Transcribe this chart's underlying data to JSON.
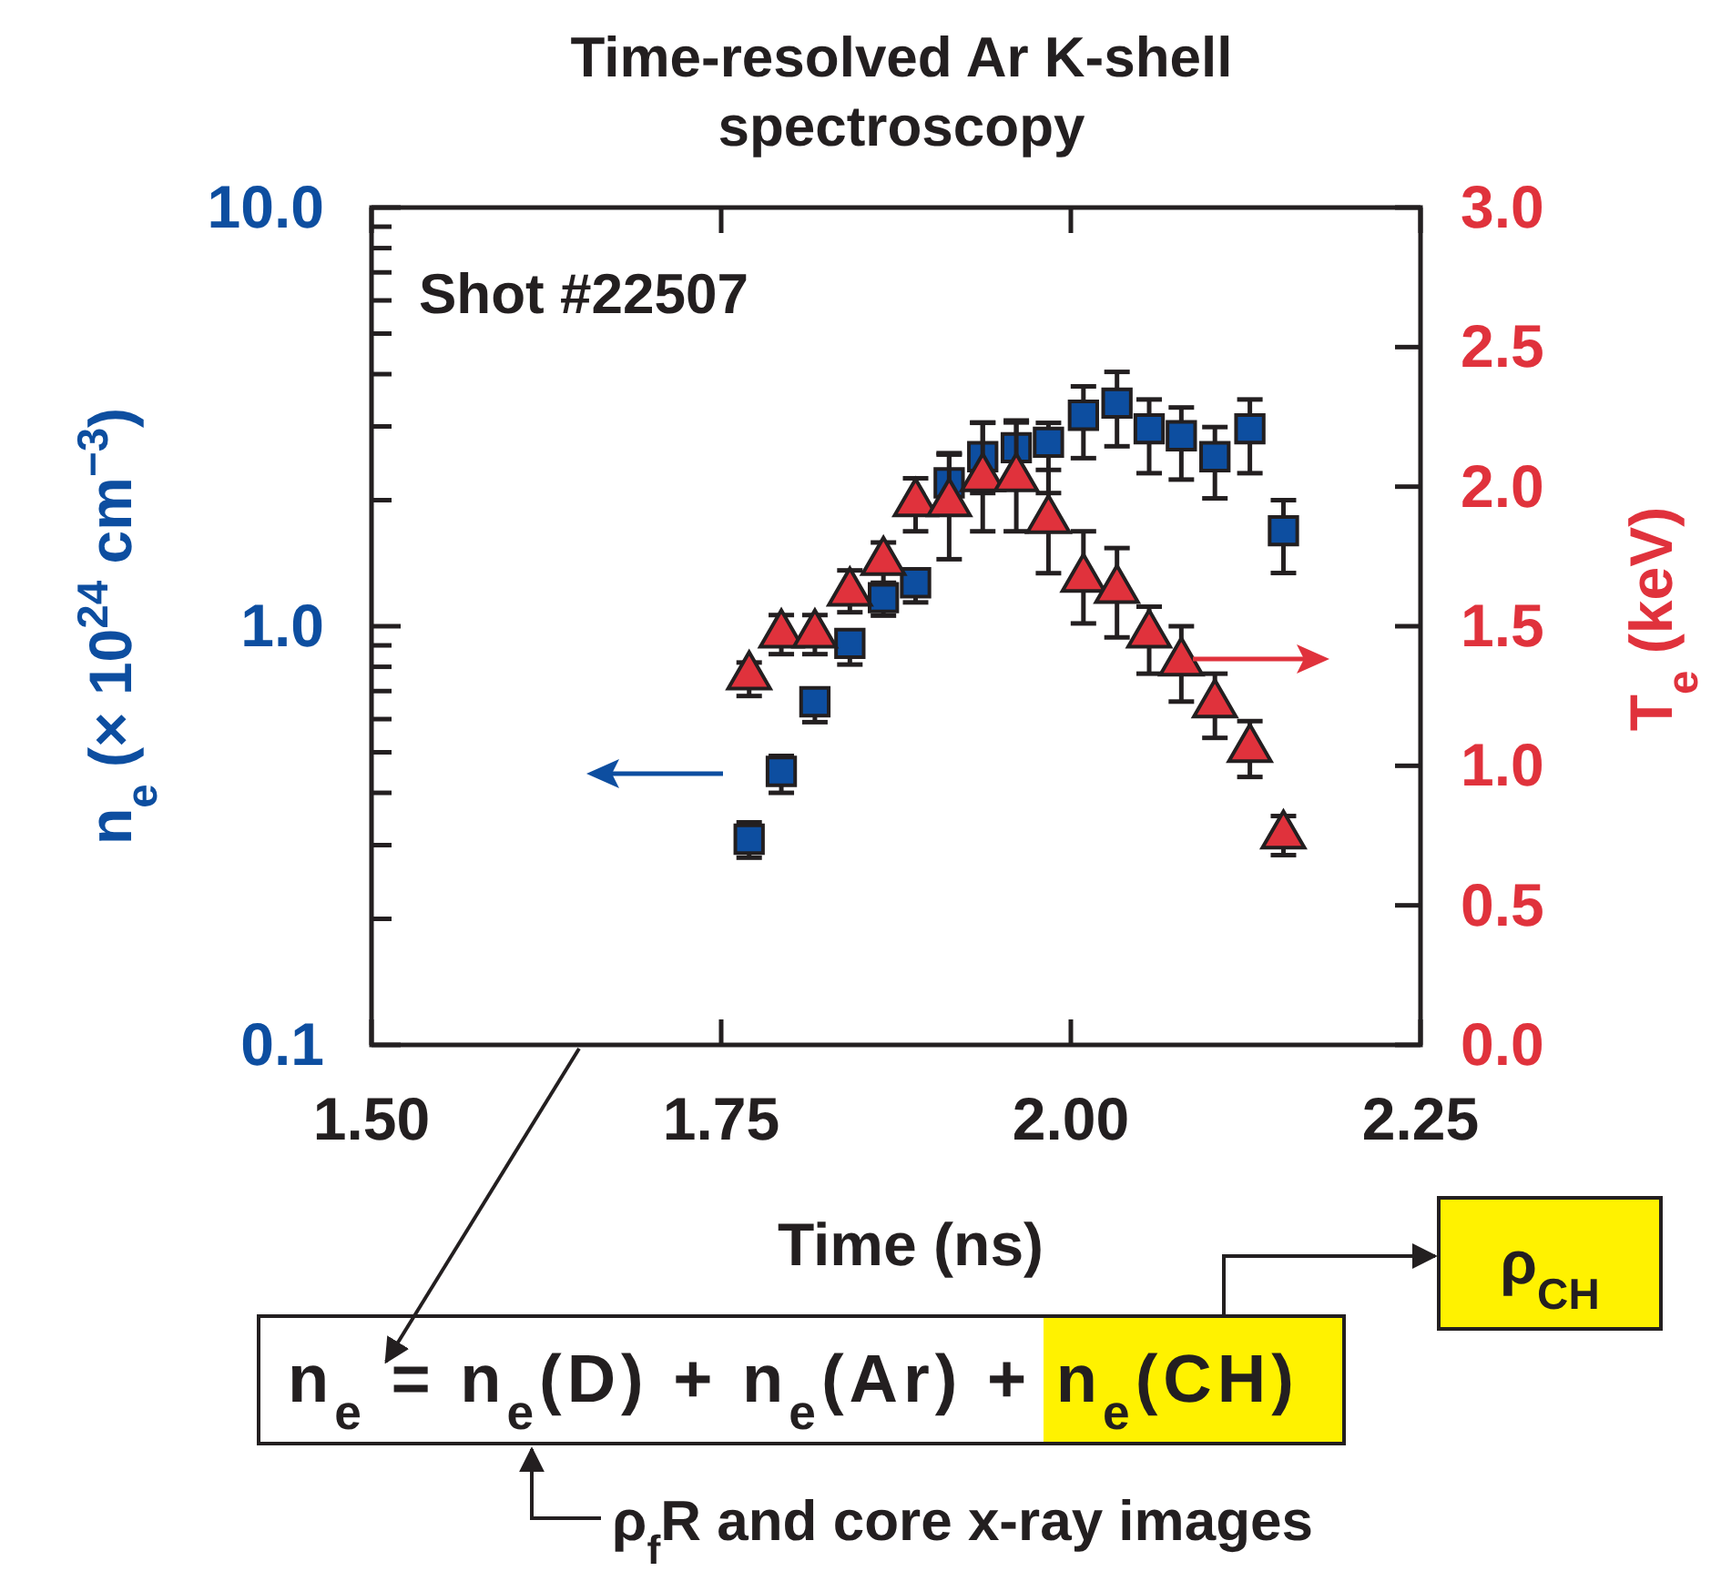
{
  "chart_data": {
    "type": "scatter",
    "title": "Time-resolved Ar K-shell spectroscopy",
    "xlabel": "Time (ns)",
    "ylabel": "n$_{e}$ (× 10$^{24}$ cm$^{−3}$)",
    "y2label": "T$_{e}$ (keV)",
    "xlim": [
      1.5,
      2.25
    ],
    "xticks": [
      {
        "value": 1.5,
        "label": "1.50"
      },
      1.75,
      {
        "value": 2,
        "label": "2.00"
      },
      2.25
    ],
    "ylim": [
      0.1,
      10
    ],
    "log": "y",
    "yticks": [
      {
        "value": 0.1,
        "label": "0.1"
      },
      {
        "value": 0.2,
        "label": null
      },
      {
        "value": 0.3,
        "label": null
      },
      {
        "value": 0.4,
        "label": null
      },
      {
        "value": 0.5,
        "label": null
      },
      {
        "value": 0.6,
        "label": null
      },
      {
        "value": 0.7,
        "label": null
      },
      {
        "value": 0.8,
        "label": null
      },
      {
        "value": 0.9,
        "label": null
      },
      {
        "value": 1,
        "label": "1.0"
      },
      {
        "value": 2,
        "label": null
      },
      {
        "value": 3,
        "label": null
      },
      {
        "value": 4,
        "label": null
      },
      {
        "value": 5,
        "label": null
      },
      {
        "value": 6,
        "label": null
      },
      {
        "value": 7,
        "label": null
      },
      {
        "value": 8,
        "label": null
      },
      {
        "value": 9,
        "label": null
      },
      {
        "value": 10,
        "label": "10.0"
      }
    ],
    "y2lim": [
      0,
      3
    ],
    "y2ticks": [
      {
        "value": 0,
        "label": "0.0"
      },
      0.5,
      {
        "value": 1,
        "label": "1.0"
      },
      1.5,
      {
        "value": 2,
        "label": "2.0"
      },
      2.5,
      {
        "value": 3,
        "label": "3.0"
      }
    ],
    "series": [
      {
        "color": "#0d4ea0",
        "marker": "square",
        "x": [
          1.77,
          1.793,
          1.817,
          1.842,
          1.866,
          1.889,
          1.913,
          1.937,
          1.961,
          1.984,
          2.009,
          2.033,
          2.056,
          2.079,
          2.103,
          2.128,
          2.152
        ],
        "values": [
          0.31,
          0.45,
          0.66,
          0.91,
          1.17,
          1.27,
          2.2,
          2.54,
          2.67,
          2.75,
          3.19,
          3.41,
          2.96,
          2.85,
          2.54,
          2.96,
          1.69
        ],
        "errors": [
          [
            0.28,
            0.34
          ],
          [
            0.4,
            0.49
          ],
          [
            0.59,
            0.7
          ],
          [
            0.81,
            0.97
          ],
          [
            1.06,
            1.27
          ],
          [
            1.14,
            1.36
          ],
          [
            1.89,
            2.57
          ],
          [
            2.08,
            3.06
          ],
          [
            2.13,
            3.1
          ],
          [
            2.08,
            3.06
          ],
          [
            2.52,
            3.74
          ],
          [
            2.69,
            4.05
          ],
          [
            2.32,
            3.48
          ],
          [
            2.24,
            3.33
          ],
          [
            2.02,
            2.99
          ],
          [
            2.32,
            3.48
          ],
          [
            1.34,
            2.0
          ]
        ]
      },
      {
        "color": "#e0323c",
        "marker": "triangle",
        "axis": "y2",
        "x": [
          1.77,
          1.793,
          1.817,
          1.842,
          1.866,
          1.889,
          1.913,
          1.937,
          1.961,
          1.984,
          2.009,
          2.033,
          2.056,
          2.079,
          2.103,
          2.128,
          2.152
        ],
        "values": [
          1.32,
          1.47,
          1.47,
          1.62,
          1.73,
          1.94,
          1.94,
          2.03,
          2.03,
          1.88,
          1.67,
          1.63,
          1.47,
          1.37,
          1.22,
          1.06,
          0.75
        ],
        "errors": [
          [
            1.25,
            1.37
          ],
          [
            1.4,
            1.54
          ],
          [
            1.4,
            1.54
          ],
          [
            1.55,
            1.7
          ],
          [
            1.65,
            1.8
          ],
          [
            1.84,
            2.03
          ],
          [
            1.74,
            2.12
          ],
          [
            1.84,
            2.23
          ],
          [
            1.84,
            2.23
          ],
          [
            1.69,
            2.06
          ],
          [
            1.51,
            1.84
          ],
          [
            1.46,
            1.78
          ],
          [
            1.33,
            1.57
          ],
          [
            1.23,
            1.5
          ],
          [
            1.1,
            1.33
          ],
          [
            0.96,
            1.16
          ],
          [
            0.68,
            0.82
          ]
        ]
      }
    ],
    "annotations": [
      "Shot #22507",
      "n$_{e}$ = n$_{e}$(D) + n$_{e}$(Ar) + n$_{e}$(CH)",
      "ρ$_{CH}$",
      "ρ$_{f}$R and core x-ray images"
    ]
  }
}
